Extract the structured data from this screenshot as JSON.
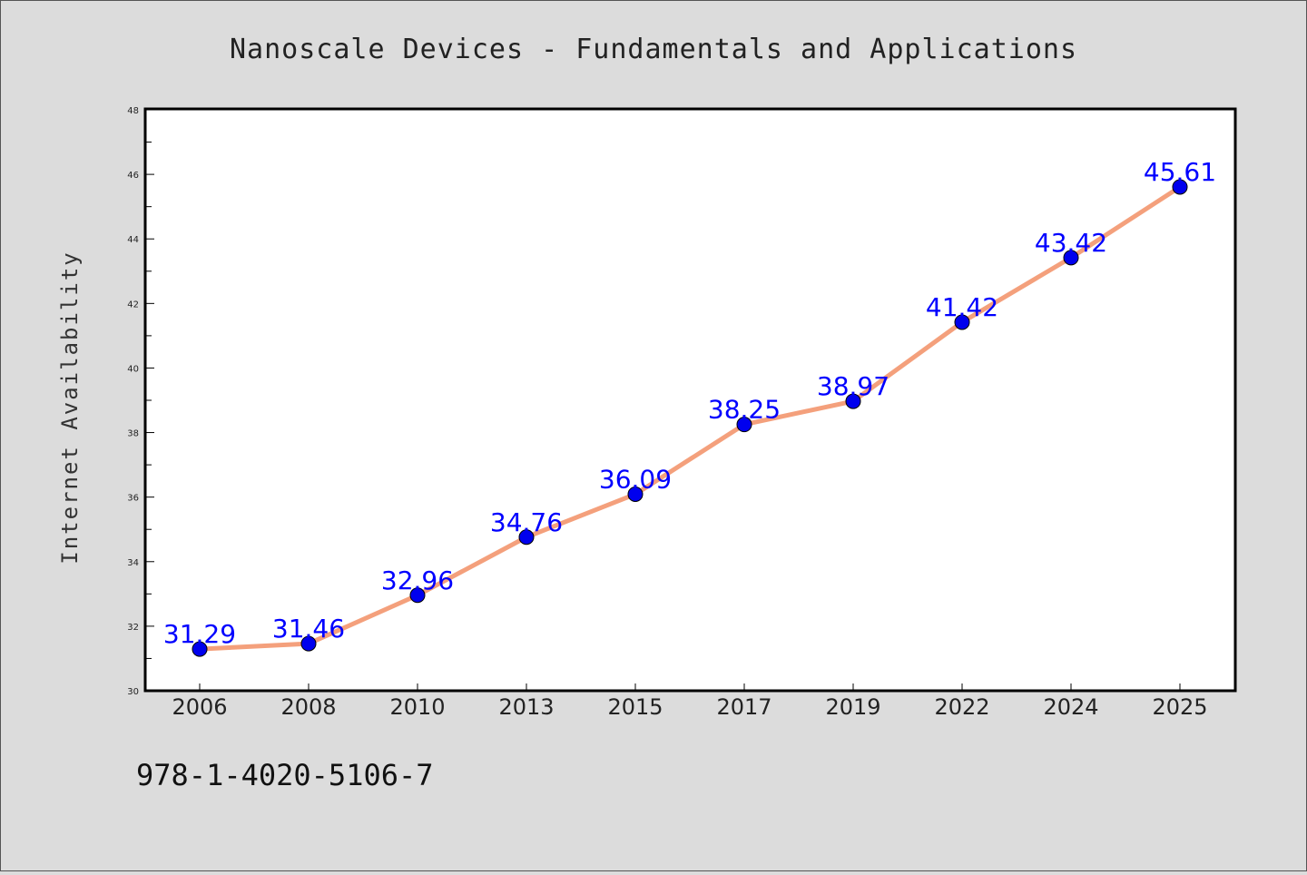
{
  "chart_data": {
    "type": "line",
    "title": "Nanoscale Devices - Fundamentals and Applications",
    "xlabel": "",
    "ylabel": "Internet Availability",
    "categories": [
      "2006",
      "2008",
      "2010",
      "2013",
      "2015",
      "2017",
      "2019",
      "2022",
      "2024",
      "2025"
    ],
    "series": [
      {
        "values": [
          31.29,
          31.46,
          32.96,
          34.76,
          36.09,
          38.25,
          38.97,
          41.42,
          43.42,
          45.61
        ],
        "labels": [
          "31.29",
          "31.46",
          "32.96",
          "34.76",
          "36.09",
          "38.25",
          "38.97",
          "41.42",
          "43.42",
          "45.61"
        ],
        "line_color": "#f4a07c",
        "marker_color": "#0000ee"
      }
    ],
    "ylim": [
      30,
      48
    ],
    "yticks": [
      "30",
      "32",
      "34",
      "36",
      "38",
      "40",
      "42",
      "44",
      "46",
      "48"
    ],
    "grid": false,
    "legend": "none"
  },
  "footer": {
    "isbn": "978-1-4020-5106-7"
  }
}
